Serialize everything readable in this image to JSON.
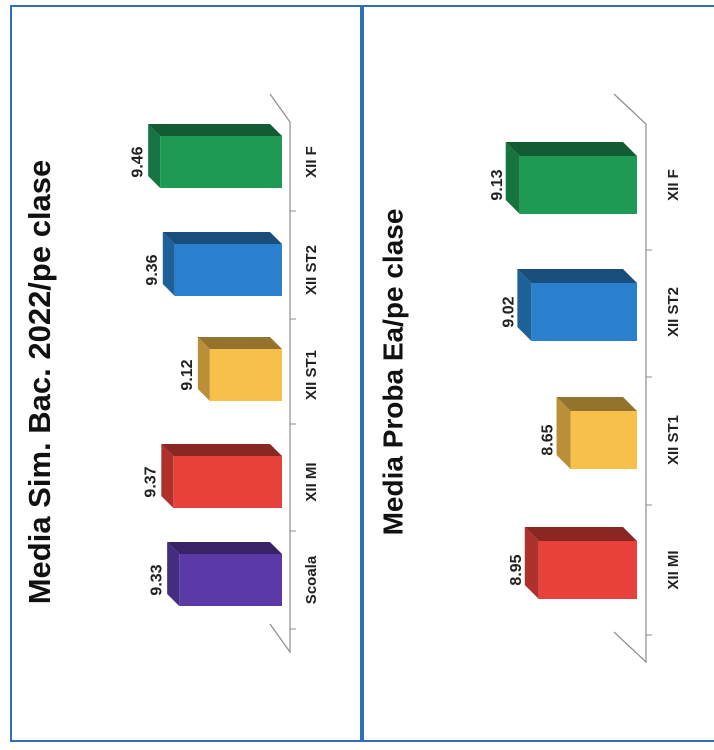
{
  "chart_data": [
    {
      "type": "bar",
      "title": "Media Sim. Bac. 2022/pe clase",
      "categories": [
        "Scoala",
        "XII MI",
        "XII ST1",
        "XII ST2",
        "XII F"
      ],
      "values": [
        9.33,
        9.37,
        9.12,
        9.36,
        9.46
      ],
      "value_labels": [
        "9.33",
        "9.37",
        "9.12",
        "9.36",
        "9.46"
      ],
      "colors": [
        "#5b3aa8",
        "#e8413b",
        "#f7c04a",
        "#2a80cc",
        "#1f9a55"
      ],
      "style": "3d",
      "orientation": "rotated 90 degrees clockwise"
    },
    {
      "type": "bar",
      "title": "Media Proba Ea/pe clase",
      "categories": [
        "XII MI",
        "XII ST1",
        "XII ST2",
        "XII F"
      ],
      "values": [
        8.95,
        8.65,
        9.02,
        9.13
      ],
      "value_labels": [
        "8.95",
        "8.65",
        "9.02",
        "9.13"
      ],
      "colors": [
        "#e8413b",
        "#f7c04a",
        "#2a80cc",
        "#1f9a55"
      ],
      "style": "3d",
      "orientation": "rotated 90 degrees clockwise"
    }
  ]
}
